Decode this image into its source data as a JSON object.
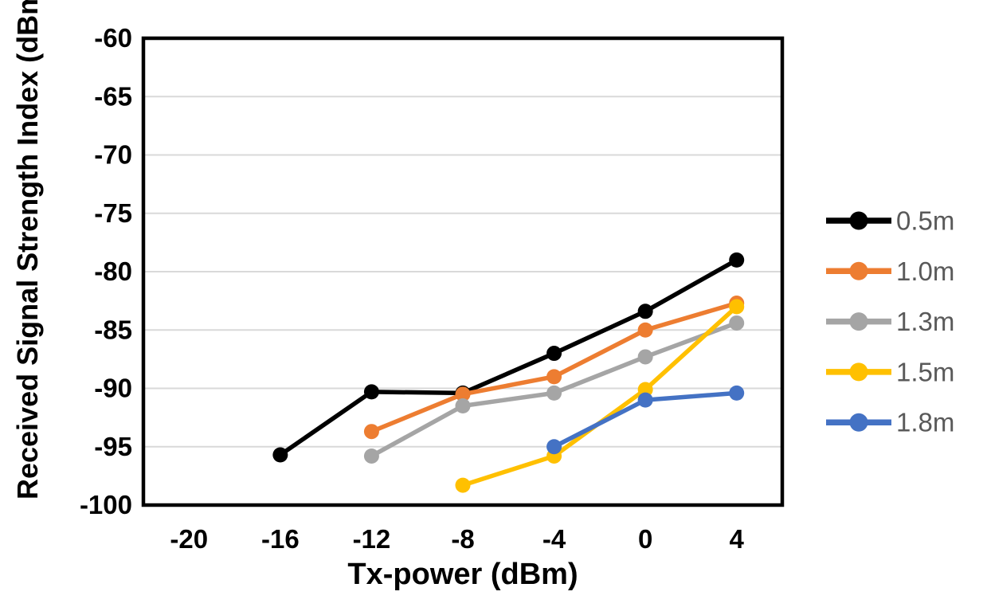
{
  "chart_data": {
    "type": "line",
    "title": "",
    "xlabel": "Tx-power (dBm)",
    "ylabel": "Received Signal Strength Index (dBm)",
    "xlim": [
      -22,
      6
    ],
    "ylim": [
      -100,
      -60
    ],
    "x_ticks": [
      -20,
      -16,
      -12,
      -8,
      -4,
      0,
      4
    ],
    "y_ticks": [
      -60,
      -65,
      -70,
      -75,
      -80,
      -85,
      -90,
      -95,
      -100
    ],
    "grid": "horizontal",
    "gridline_color": "#d9d9d9",
    "axis_border_color": "#000000",
    "axis_text_color": "#000000",
    "legend_position": "right",
    "legend_text_color": "#595959",
    "marker": "circle",
    "series": [
      {
        "name": "0.5m",
        "color": "#000000",
        "points": [
          [
            -16,
            -95.7
          ],
          [
            -12,
            -90.3
          ],
          [
            -8,
            -90.4
          ],
          [
            -4,
            -87.0
          ],
          [
            0,
            -83.4
          ],
          [
            4,
            -79.0
          ]
        ]
      },
      {
        "name": "1.0m",
        "color": "#ed7d31",
        "points": [
          [
            -12,
            -93.7
          ],
          [
            -8,
            -90.5
          ],
          [
            -4,
            -89.0
          ],
          [
            0,
            -85.0
          ],
          [
            4,
            -82.7
          ]
        ]
      },
      {
        "name": "1.3m",
        "color": "#a5a5a5",
        "points": [
          [
            -12,
            -95.8
          ],
          [
            -8,
            -91.5
          ],
          [
            -4,
            -90.4
          ],
          [
            0,
            -87.3
          ],
          [
            4,
            -84.4
          ]
        ]
      },
      {
        "name": "1.5m",
        "color": "#ffc000",
        "points": [
          [
            -8,
            -98.3
          ],
          [
            -4,
            -95.8
          ],
          [
            0,
            -90.1
          ],
          [
            4,
            -83.0
          ]
        ]
      },
      {
        "name": "1.8m",
        "color": "#4472c4",
        "points": [
          [
            -4,
            -95.0
          ],
          [
            0,
            -91.0
          ],
          [
            4,
            -90.4
          ]
        ]
      }
    ]
  }
}
